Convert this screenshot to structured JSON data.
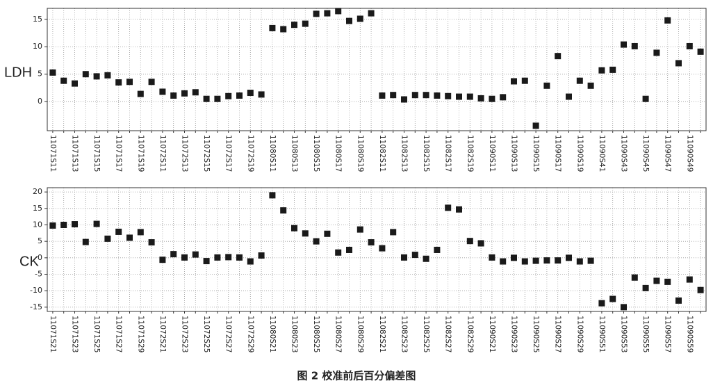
{
  "chart_data": [
    {
      "type": "scatter",
      "ylabel": "LDH",
      "color": "#1a1a1a",
      "grid": true,
      "categories": [
        "11071S11",
        null,
        "11071S13",
        null,
        "11071S15",
        null,
        "11071S17",
        null,
        "11071S19",
        null,
        "11072S11",
        null,
        "11072S13",
        null,
        "11072S15",
        null,
        "11072S17",
        null,
        "11072S19",
        null,
        "11080S11",
        null,
        "11080S13",
        null,
        "11080S15",
        null,
        "11080S17",
        null,
        "11080S19",
        null,
        "11082S11",
        null,
        "11082S13",
        null,
        "11082S15",
        null,
        "11082S17",
        null,
        "11082S19",
        null,
        "11090S11",
        null,
        "11090S13",
        null,
        "11090S15",
        null,
        "11090S17",
        null,
        "11090S19",
        null,
        "11090S41",
        null,
        "11090S43",
        null,
        "11090S45",
        null,
        "11090S47",
        null,
        "11090S49",
        null
      ],
      "values": [
        5.3,
        3.8,
        3.3,
        5.0,
        4.6,
        4.8,
        3.5,
        3.6,
        1.4,
        3.6,
        1.8,
        1.1,
        1.5,
        1.7,
        0.5,
        0.5,
        1.0,
        1.1,
        1.6,
        1.3,
        13.4,
        13.2,
        14.0,
        14.2,
        16.0,
        16.1,
        16.5,
        14.7,
        15.1,
        16.1,
        1.1,
        1.2,
        0.4,
        1.2,
        1.2,
        1.1,
        1.0,
        0.9,
        0.9,
        0.6,
        0.5,
        0.8,
        3.7,
        3.8,
        -4.4,
        2.9,
        8.3,
        0.9,
        3.8,
        2.9,
        5.7,
        5.8,
        10.4,
        10.1,
        0.5,
        8.9,
        14.8,
        7.0,
        10.1,
        9.1
      ],
      "ylim": [
        -5.3,
        17
      ],
      "yticks": [
        0,
        5,
        10,
        15
      ]
    },
    {
      "type": "scatter",
      "ylabel": "CK",
      "color": "#1a1a1a",
      "grid": true,
      "categories": [
        "11071S21",
        null,
        "11071S23",
        null,
        "11071S25",
        null,
        "11071S27",
        null,
        "11071S29",
        null,
        "11072S21",
        null,
        "11072S23",
        null,
        "11072S25",
        null,
        "11072S27",
        null,
        "11072S29",
        null,
        "11080S21",
        null,
        "11080S23",
        null,
        "11080S25",
        null,
        "11080S27",
        null,
        "11080S29",
        null,
        "11082S21",
        null,
        "11082S23",
        null,
        "11082S25",
        null,
        "11082S27",
        null,
        "11082S29",
        null,
        "11090S21",
        null,
        "11090S23",
        null,
        "11090S25",
        null,
        "11090S27",
        null,
        "11090S29",
        null,
        "11090S51",
        null,
        "11090S53",
        null,
        "11090S55",
        null,
        "11090S57",
        null,
        "11090S59",
        null
      ],
      "values": [
        9.8,
        10.0,
        10.2,
        4.8,
        10.3,
        5.8,
        7.9,
        6.1,
        7.8,
        4.7,
        -0.6,
        1.1,
        0.1,
        1.0,
        -1.0,
        0.1,
        0.2,
        0.1,
        -1.1,
        0.7,
        19.0,
        14.4,
        9.0,
        7.4,
        5.0,
        7.3,
        1.6,
        2.4,
        8.6,
        4.7,
        2.9,
        7.8,
        0.1,
        0.9,
        -0.3,
        2.4,
        15.2,
        14.7,
        5.1,
        4.4,
        0.1,
        -1.1,
        0.0,
        -1.1,
        -0.9,
        -0.8,
        -0.8,
        0.0,
        -1.1,
        -0.9,
        -13.8,
        -12.5,
        -15.0,
        -6.0,
        -9.2,
        -7.0,
        -7.3,
        -13.0,
        -6.6,
        -9.8
      ],
      "ylim": [
        -16.3,
        21.3
      ],
      "yticks": [
        -15,
        -10,
        -5,
        0,
        5,
        10,
        15,
        20
      ]
    }
  ],
  "caption": "图 2   校准前后百分偏差图"
}
